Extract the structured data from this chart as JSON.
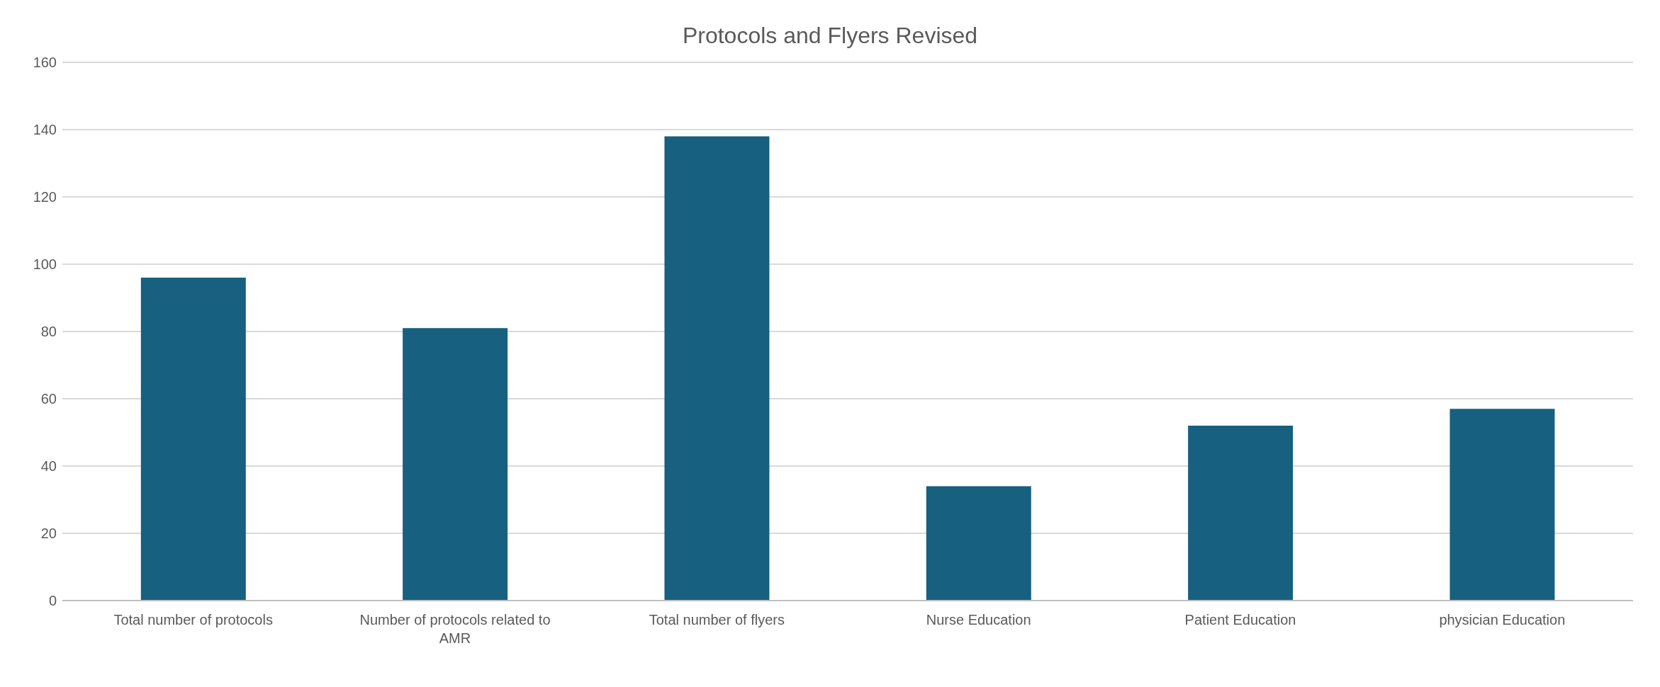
{
  "chart_data": {
    "type": "bar",
    "title": "Protocols and Flyers Revised",
    "categories": [
      "Total number of protocols",
      "Number of protocols related to AMR",
      "Total number of flyers",
      "Nurse Education",
      "Patient Education",
      "physician Education"
    ],
    "values": [
      96,
      81,
      138,
      34,
      52,
      57
    ],
    "color": "#17607f",
    "ylim": [
      0,
      160
    ],
    "yticks": [
      0,
      20,
      40,
      60,
      80,
      100,
      120,
      140,
      160
    ],
    "grid": "y"
  }
}
